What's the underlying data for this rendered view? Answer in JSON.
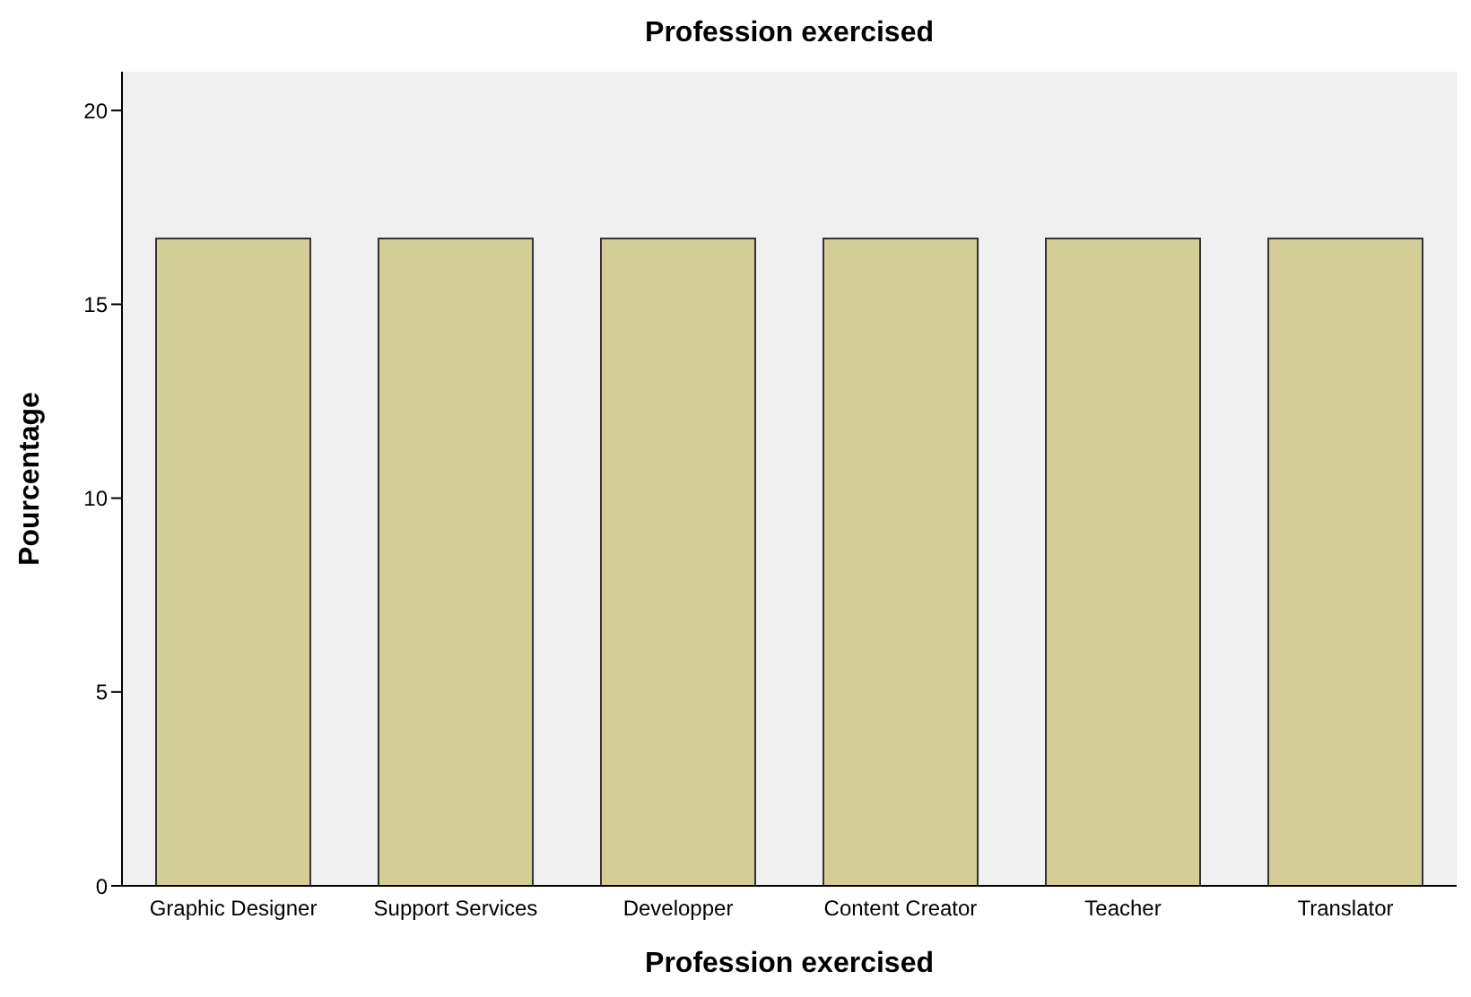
{
  "chart_data": {
    "type": "bar",
    "title": "Profession exercised",
    "xlabel": "Profession exercised",
    "ylabel": "Pourcentage",
    "categories": [
      "Graphic Designer",
      "Support Services",
      "Developper",
      "Content Creator",
      "Teacher",
      "Translator"
    ],
    "values": [
      16.7,
      16.7,
      16.7,
      16.7,
      16.7,
      16.7
    ],
    "color": "#d3ce97",
    "ylim": [
      0,
      21
    ],
    "yticks": [
      0,
      5,
      10,
      15,
      20
    ],
    "grid": false,
    "legend": false
  }
}
